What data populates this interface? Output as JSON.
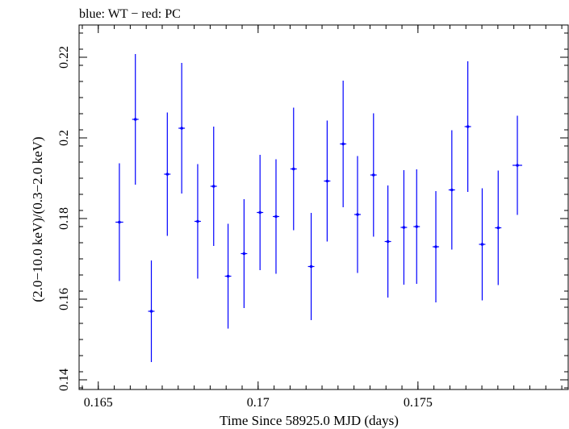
{
  "chart_data": {
    "type": "scatter",
    "title": "blue: WT − red: PC",
    "xlabel": "Time Since 58925.0 MJD (days)",
    "ylabel": "(2.0−10.0 keV)/(0.3−2.0 keV)",
    "xlim": [
      0.1644,
      0.1797
    ],
    "ylim": [
      0.1376,
      0.228
    ],
    "xticks": [
      0.165,
      0.17,
      0.175
    ],
    "xtick_labels": [
      "0.165",
      "0.17",
      "0.175"
    ],
    "yticks": [
      0.14,
      0.16,
      0.18,
      0.2,
      0.22
    ],
    "ytick_labels": [
      "0.14",
      "0.16",
      "0.18",
      "0.2",
      "0.22"
    ],
    "grid": false,
    "series": [
      {
        "color": "#0000ff",
        "points": [
          {
            "x": 0.16566,
            "y": 0.1791,
            "xerr": 0.00012,
            "yerr_low": 0.0146,
            "yerr_high": 0.0146
          },
          {
            "x": 0.16616,
            "y": 0.2046,
            "xerr": 0.0001,
            "yerr_low": 0.0162,
            "yerr_high": 0.0162
          },
          {
            "x": 0.16666,
            "y": 0.157,
            "xerr": 0.0001,
            "yerr_low": 0.0126,
            "yerr_high": 0.0126
          },
          {
            "x": 0.16716,
            "y": 0.191,
            "xerr": 0.0001,
            "yerr_low": 0.0153,
            "yerr_high": 0.0153
          },
          {
            "x": 0.16761,
            "y": 0.2024,
            "xerr": 0.0001,
            "yerr_low": 0.0162,
            "yerr_high": 0.0162
          },
          {
            "x": 0.16811,
            "y": 0.1793,
            "xerr": 0.0001,
            "yerr_low": 0.0142,
            "yerr_high": 0.0142
          },
          {
            "x": 0.16861,
            "y": 0.188,
            "xerr": 0.0001,
            "yerr_low": 0.0148,
            "yerr_high": 0.0148
          },
          {
            "x": 0.16906,
            "y": 0.1657,
            "xerr": 0.0001,
            "yerr_low": 0.013,
            "yerr_high": 0.013
          },
          {
            "x": 0.16956,
            "y": 0.1713,
            "xerr": 0.0001,
            "yerr_low": 0.0135,
            "yerr_high": 0.0135
          },
          {
            "x": 0.17006,
            "y": 0.1815,
            "xerr": 0.0001,
            "yerr_low": 0.0143,
            "yerr_high": 0.0143
          },
          {
            "x": 0.17056,
            "y": 0.1805,
            "xerr": 0.0001,
            "yerr_low": 0.0142,
            "yerr_high": 0.0142
          },
          {
            "x": 0.17111,
            "y": 0.1923,
            "xerr": 0.0001,
            "yerr_low": 0.0152,
            "yerr_high": 0.0152
          },
          {
            "x": 0.17166,
            "y": 0.1681,
            "xerr": 0.0001,
            "yerr_low": 0.0133,
            "yerr_high": 0.0133
          },
          {
            "x": 0.17216,
            "y": 0.1893,
            "xerr": 0.0001,
            "yerr_low": 0.015,
            "yerr_high": 0.015
          },
          {
            "x": 0.17266,
            "y": 0.1985,
            "xerr": 0.0001,
            "yerr_low": 0.0157,
            "yerr_high": 0.0157
          },
          {
            "x": 0.17311,
            "y": 0.181,
            "xerr": 0.0001,
            "yerr_low": 0.0145,
            "yerr_high": 0.0145
          },
          {
            "x": 0.17361,
            "y": 0.1908,
            "xerr": 0.0001,
            "yerr_low": 0.0153,
            "yerr_high": 0.0153
          },
          {
            "x": 0.17406,
            "y": 0.1743,
            "xerr": 0.0001,
            "yerr_low": 0.0139,
            "yerr_high": 0.0139
          },
          {
            "x": 0.17456,
            "y": 0.1778,
            "xerr": 0.0001,
            "yerr_low": 0.0142,
            "yerr_high": 0.0142
          },
          {
            "x": 0.17496,
            "y": 0.178,
            "xerr": 0.0001,
            "yerr_low": 0.0142,
            "yerr_high": 0.0142
          },
          {
            "x": 0.17556,
            "y": 0.173,
            "xerr": 0.0001,
            "yerr_low": 0.0138,
            "yerr_high": 0.0138
          },
          {
            "x": 0.17606,
            "y": 0.1871,
            "xerr": 0.0001,
            "yerr_low": 0.0148,
            "yerr_high": 0.0148
          },
          {
            "x": 0.17656,
            "y": 0.2028,
            "xerr": 0.0001,
            "yerr_low": 0.0162,
            "yerr_high": 0.0162
          },
          {
            "x": 0.17701,
            "y": 0.1736,
            "xerr": 0.0001,
            "yerr_low": 0.0139,
            "yerr_high": 0.0139
          },
          {
            "x": 0.17751,
            "y": 0.1777,
            "xerr": 0.0001,
            "yerr_low": 0.0142,
            "yerr_high": 0.0142
          },
          {
            "x": 0.17811,
            "y": 0.1932,
            "xerr": 0.00015,
            "yerr_low": 0.0123,
            "yerr_high": 0.0123
          }
        ]
      }
    ]
  }
}
